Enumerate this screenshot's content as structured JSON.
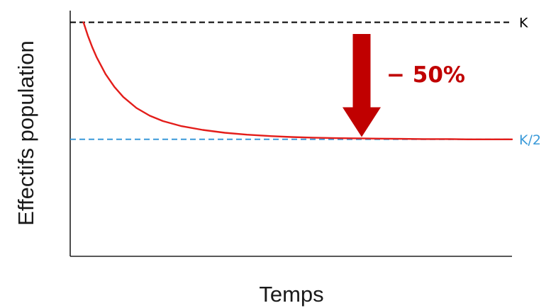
{
  "chart_data": {
    "type": "line",
    "xlabel": "Temps",
    "ylabel": "Effectifs population",
    "x_ticks_shown": false,
    "y_ticks_shown": false,
    "grid": false,
    "xlim": [
      0,
      100
    ],
    "ylim": [
      0,
      1.05
    ],
    "reference_lines": [
      {
        "label": "K",
        "y": 1.0,
        "color": "#000000",
        "style": "dashed"
      },
      {
        "label": "K/2",
        "y": 0.5,
        "color": "#3a9ad9",
        "style": "dashed"
      }
    ],
    "series": [
      {
        "color": "#e31d1a",
        "x": [
          3,
          4,
          5,
          6,
          8,
          10,
          12,
          15,
          18,
          21,
          25,
          30,
          35,
          40,
          45,
          50,
          55,
          60,
          65,
          70,
          75,
          80,
          85,
          90,
          95,
          100
        ],
        "y": [
          1.0,
          0.943,
          0.893,
          0.85,
          0.779,
          0.724,
          0.681,
          0.634,
          0.601,
          0.578,
          0.557,
          0.54,
          0.528,
          0.52,
          0.514,
          0.51,
          0.507,
          0.505,
          0.504,
          0.503,
          0.502,
          0.501,
          0.501,
          0.5,
          0.5,
          0.5
        ]
      }
    ],
    "annotation": {
      "text": "− 50%",
      "color": "#c00000",
      "arrow_from_y": 0.95,
      "arrow_to_y": 0.51
    }
  }
}
